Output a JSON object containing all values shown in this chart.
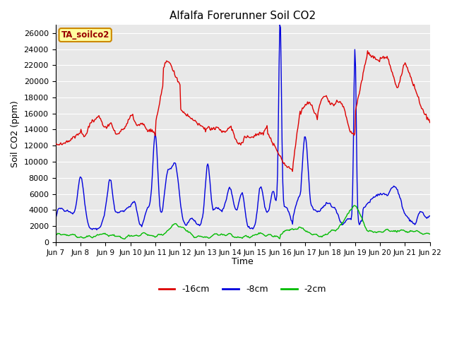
{
  "title": "Alfalfa Forerunner Soil CO2",
  "ylabel": "Soil CO2 (ppm)",
  "xlabel": "Time",
  "tag_label": "TA_soilco2",
  "ylim": [
    0,
    27000
  ],
  "yticks": [
    0,
    2000,
    4000,
    6000,
    8000,
    10000,
    12000,
    14000,
    16000,
    18000,
    20000,
    22000,
    24000,
    26000
  ],
  "legend_labels": [
    "-16cm",
    "-8cm",
    "-2cm"
  ],
  "legend_colors": [
    "#dd0000",
    "#0000dd",
    "#00bb00"
  ],
  "line_colors": [
    "#dd0000",
    "#0000dd",
    "#00bb00"
  ],
  "fig_bg_color": "#ffffff",
  "plot_bg_color": "#e8e8e8",
  "grid_color": "#ffffff",
  "xtick_labels": [
    "Jun 7",
    "Jun 8",
    "Jun 9",
    "Jun 10",
    "Jun 11",
    "Jun 12",
    "Jun 13",
    "Jun 14",
    "Jun 15",
    "Jun 16",
    "Jun 17",
    "Jun 18",
    "Jun 19",
    "Jun 20",
    "Jun 21",
    "Jun 22"
  ],
  "n_points": 500
}
